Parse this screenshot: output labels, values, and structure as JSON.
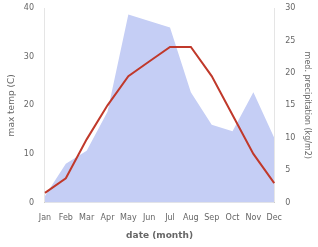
{
  "chart_data": {
    "type": "line",
    "xlabel": "date (month)",
    "ylabel": "max temp (C)",
    "y2label": "med. precipitation (kg/m2)",
    "categories": [
      "Jan",
      "Feb",
      "Mar",
      "Apr",
      "May",
      "Jun",
      "Jul",
      "Aug",
      "Sep",
      "Oct",
      "Nov",
      "Dec"
    ],
    "series": [
      {
        "type": "area",
        "axis": "y2",
        "color": "#c5cef5",
        "values": [
          1,
          6,
          8,
          14,
          29,
          28,
          27,
          17,
          12,
          11,
          17,
          10
        ]
      },
      {
        "type": "line",
        "color": "#c0392b",
        "values": [
          2,
          5,
          13,
          20,
          26,
          29,
          32,
          32,
          26,
          18,
          10,
          4
        ]
      }
    ],
    "ylim": [
      0,
      40
    ],
    "yticks": [
      0,
      10,
      20,
      30,
      40
    ],
    "y2lim": [
      0,
      30
    ],
    "y2ticks": [
      0,
      5,
      10,
      15,
      20,
      25,
      30
    ],
    "grid": false
  }
}
